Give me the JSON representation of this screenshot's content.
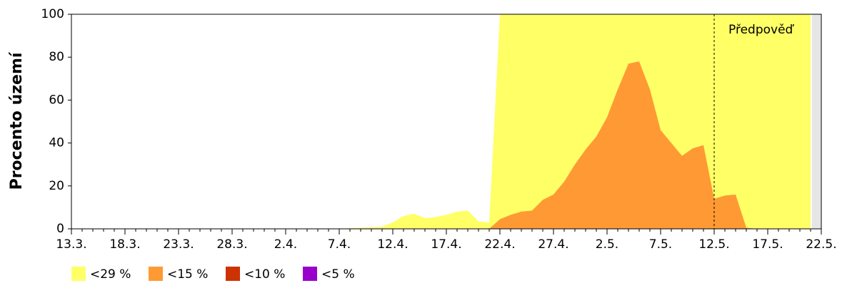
{
  "chart_data": {
    "type": "area",
    "annotation": "Předpověď",
    "ylabel": "Procento území",
    "categories": [
      "13.3.",
      null,
      null,
      null,
      null,
      "18.3.",
      null,
      null,
      null,
      null,
      "23.3.",
      null,
      null,
      null,
      null,
      "28.3.",
      null,
      null,
      null,
      null,
      "2.4.",
      null,
      null,
      null,
      null,
      "7.4.",
      null,
      null,
      null,
      null,
      "12.4.",
      null,
      null,
      null,
      null,
      "17.4.",
      null,
      null,
      null,
      null,
      "22.4.",
      null,
      null,
      null,
      null,
      "27.4.",
      null,
      null,
      null,
      null,
      "2.5.",
      null,
      null,
      null,
      null,
      "7.5.",
      null,
      null,
      null,
      null,
      "12.5.",
      null,
      null,
      null,
      null,
      "17.5.",
      null,
      null,
      null,
      null,
      "22.5."
    ],
    "series": [
      {
        "name": "<29 %",
        "color": "#ffff66",
        "values": [
          0,
          0,
          0,
          0,
          0,
          0,
          0,
          0,
          0,
          0,
          0,
          0,
          0,
          0,
          0,
          0,
          0,
          0,
          0,
          0,
          0,
          0,
          0,
          0,
          0,
          0,
          0.3,
          0.5,
          0.7,
          1,
          3,
          6,
          7,
          5,
          5.5,
          6.5,
          8,
          8.5,
          3.5,
          3,
          100,
          100,
          100,
          100,
          100,
          100,
          100,
          100,
          100,
          100,
          100,
          100,
          100,
          100,
          100,
          100,
          100,
          100,
          100,
          100,
          100,
          100,
          100,
          100,
          100,
          100,
          100,
          100,
          100,
          100,
          null
        ]
      },
      {
        "name": "<15 %",
        "color": "#ff9933",
        "values": [
          0,
          0,
          0,
          0,
          0,
          0,
          0,
          0,
          0,
          0,
          0,
          0,
          0,
          0,
          0,
          0,
          0,
          0,
          0,
          0,
          0,
          0,
          0,
          0,
          0,
          0,
          0,
          0,
          0,
          0,
          0,
          0,
          0,
          0,
          0,
          0,
          0,
          0,
          0,
          0,
          4.5,
          6.5,
          8,
          8.5,
          13.5,
          16,
          22,
          30,
          37,
          43,
          52,
          65,
          77,
          78,
          65,
          46,
          40,
          34,
          37.5,
          39,
          14,
          15.5,
          16,
          0.5,
          0,
          0,
          0,
          0,
          0,
          0,
          null
        ]
      },
      {
        "name": "<10 %",
        "color": "#cc3300",
        "values": [
          0,
          0,
          0,
          0,
          0,
          0,
          0,
          0,
          0,
          0,
          0,
          0,
          0,
          0,
          0,
          0,
          0,
          0,
          0,
          0,
          0,
          0,
          0,
          0,
          0,
          0,
          0,
          0,
          0,
          0,
          0,
          0,
          0,
          0,
          0,
          0,
          0,
          0,
          0,
          0,
          0,
          0,
          0,
          0,
          0,
          0,
          0,
          0,
          0,
          0,
          0,
          0,
          0,
          0,
          0,
          0,
          0,
          0,
          0,
          0,
          0,
          0,
          0,
          0,
          0,
          0,
          0,
          0,
          0,
          0,
          null
        ]
      },
      {
        "name": "<5 %",
        "color": "#9900cc",
        "values": [
          0,
          0,
          0,
          0,
          0,
          0,
          0,
          0,
          0,
          0,
          0,
          0,
          0,
          0,
          0,
          0,
          0,
          0,
          0,
          0,
          0,
          0,
          0,
          0,
          0,
          0,
          0,
          0,
          0,
          0,
          0,
          0,
          0,
          0,
          0,
          0,
          0,
          0,
          0,
          0,
          0,
          0,
          0,
          0,
          0,
          0,
          0,
          0,
          0,
          0,
          0,
          0,
          0,
          0,
          0,
          0,
          0,
          0,
          0,
          0,
          0,
          0,
          0,
          0,
          0,
          0,
          0,
          0,
          0,
          0,
          null
        ]
      }
    ],
    "ylim": [
      0,
      100
    ],
    "yticks": [
      0,
      20,
      40,
      60,
      80,
      100
    ]
  }
}
